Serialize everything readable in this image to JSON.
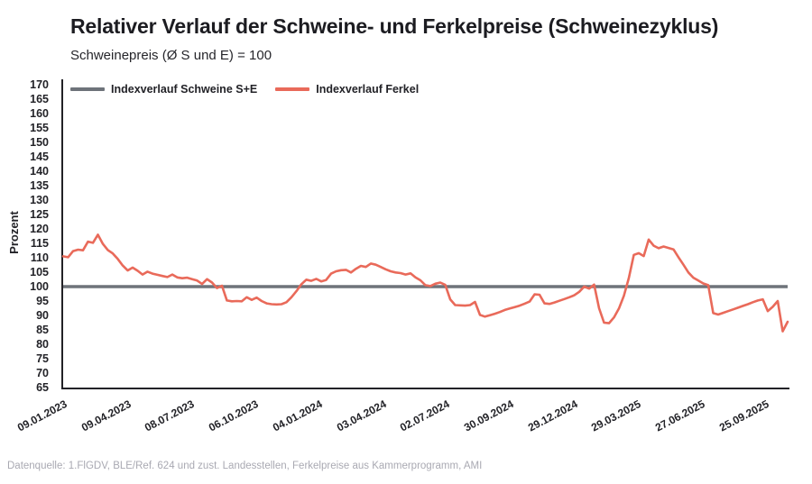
{
  "chart_data": {
    "type": "line",
    "title": "Relativer Verlauf der Schweine- und Ferkelpreise (Schweinezyklus)",
    "subtitle": "Schweinepreis (Ø S und E) = 100",
    "ylabel": "Prozent",
    "ylim": [
      65,
      170
    ],
    "ytick_step": 5,
    "grid": false,
    "legend_position": "top-left-inside-plot",
    "x_tick_labels": [
      "09.01.2023",
      "09.04.2023",
      "08.07.2023",
      "06.10.2023",
      "04.01.2024",
      "03.04.2024",
      "02.07.2024",
      "30.09.2024",
      "29.12.2024",
      "29.03.2025",
      "27.06.2025",
      "25.09.2025"
    ],
    "series": [
      {
        "name": "Indexverlauf Schweine S+E",
        "color": "#6e737a",
        "style": "constant",
        "value": 100
      },
      {
        "name": "Indexverlauf Ferkel",
        "color": "#e96a5a",
        "style": "weekly",
        "values": [
          110.5,
          110.2,
          112.3,
          112.8,
          112.6,
          115.6,
          115.2,
          118.0,
          114.8,
          112.7,
          111.5,
          109.6,
          107.3,
          105.6,
          106.6,
          105.5,
          104.2,
          105.2,
          104.5,
          104.1,
          103.7,
          103.3,
          104.2,
          103.2,
          102.9,
          103.1,
          102.6,
          102.1,
          100.9,
          102.6,
          101.4,
          99.5,
          100.3,
          95.2,
          94.9,
          95.0,
          94.9,
          96.3,
          95.4,
          96.2,
          95.0,
          94.2,
          93.9,
          93.8,
          93.9,
          94.6,
          96.3,
          98.4,
          100.8,
          102.4,
          102.0,
          102.7,
          101.8,
          102.3,
          104.5,
          105.3,
          105.7,
          105.8,
          104.9,
          106.2,
          107.2,
          106.8,
          108.0,
          107.6,
          106.8,
          106.0,
          105.3,
          104.9,
          104.7,
          104.2,
          104.6,
          103.2,
          102.2,
          100.5,
          100.2,
          101.0,
          101.4,
          100.6,
          95.6,
          93.6,
          93.5,
          93.4,
          93.6,
          94.7,
          90.2,
          89.6,
          90.1,
          90.6,
          91.2,
          91.9,
          92.4,
          92.9,
          93.4,
          94.1,
          94.8,
          97.3,
          97.2,
          94.2,
          94.0,
          94.5,
          95.1,
          95.7,
          96.3,
          97.0,
          98.2,
          100.0,
          99.3,
          100.7,
          92.5,
          87.5,
          87.3,
          89.3,
          92.4,
          96.8,
          103.0,
          111.0,
          111.6,
          110.6,
          116.3,
          114.2,
          113.3,
          113.9,
          113.4,
          112.9,
          110.2,
          107.6,
          104.9,
          103.1,
          102.1,
          101.1,
          100.5,
          90.8,
          90.3,
          90.9,
          91.5,
          92.1,
          92.7,
          93.3,
          93.9,
          94.6,
          95.2,
          95.6,
          91.5,
          93.0,
          95.0,
          84.5,
          87.8
        ]
      }
    ],
    "source": "Datenquelle: 1.FlGDV, BLE/Ref. 624 und zust. Landesstellen, Ferkelpreise aus Kammerprogramm, AMI"
  }
}
